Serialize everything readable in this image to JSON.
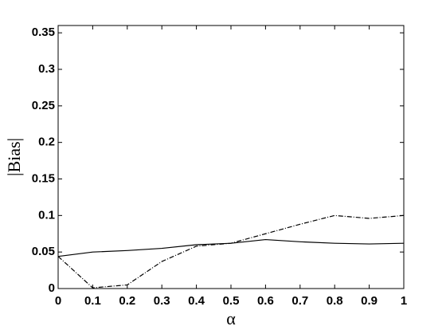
{
  "chart_data": {
    "type": "line",
    "xlabel": "α",
    "ylabel": "|Bias|",
    "x": [
      0,
      0.1,
      0.2,
      0.3,
      0.4,
      0.5,
      0.6,
      0.7,
      0.8,
      0.9,
      1
    ],
    "series": [
      {
        "color": "#000000",
        "dash": "solid",
        "values": [
          0.044,
          0.05,
          0.052,
          0.055,
          0.06,
          0.062,
          0.067,
          0.064,
          0.062,
          0.061,
          0.062
        ]
      },
      {
        "color": "#000000",
        "dash": "dashdot",
        "values": [
          0.044,
          0.001,
          0.005,
          0.037,
          0.058,
          0.062,
          0.075,
          0.088,
          0.1,
          0.096,
          0.1
        ]
      }
    ],
    "xlim": [
      0,
      1
    ],
    "xticks": [
      0,
      0.1,
      0.2,
      0.3,
      0.4,
      0.5,
      0.6,
      0.7,
      0.8,
      0.9,
      1
    ],
    "ylim": [
      0,
      0.36
    ],
    "yticks": [
      0,
      0.05,
      0.1,
      0.15,
      0.2,
      0.25,
      0.3,
      0.35
    ]
  }
}
